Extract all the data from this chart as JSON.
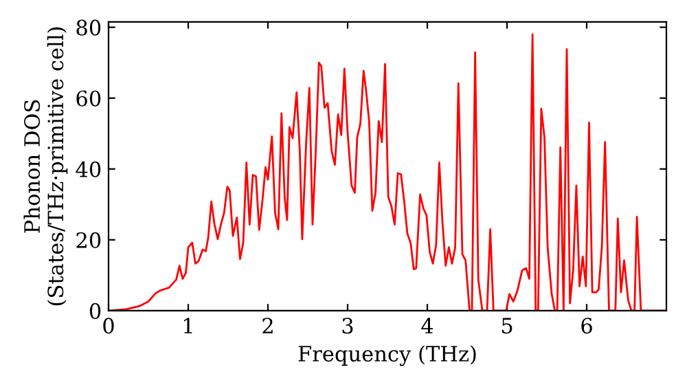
{
  "chart_data": {
    "type": "line",
    "xlabel": "Frequency (THz)",
    "ylabel": "Phonon DOS\n(States/THz·primitive cell)",
    "xlim": [
      0,
      7
    ],
    "ylim": [
      0,
      81.5
    ],
    "xticks": [
      0,
      1,
      2,
      3,
      4,
      5,
      6
    ],
    "yticks": [
      0,
      20,
      40,
      60,
      80
    ],
    "grid": false,
    "marker": "none",
    "line_style": "solid",
    "series": [
      {
        "color": "#ff0000",
        "x": [
          0,
          0.22,
          0.39,
          0.5,
          0.59,
          0.65,
          0.76,
          0.85,
          0.89,
          0.93,
          0.97,
          1.0,
          1.05,
          1.09,
          1.13,
          1.18,
          1.22,
          1.25,
          1.29,
          1.33,
          1.37,
          1.41,
          1.45,
          1.49,
          1.52,
          1.56,
          1.61,
          1.65,
          1.69,
          1.73,
          1.77,
          1.81,
          1.85,
          1.89,
          1.93,
          1.97,
          2.0,
          2.05,
          2.09,
          2.13,
          2.17,
          2.21,
          2.24,
          2.27,
          2.31,
          2.36,
          2.4,
          2.43,
          2.48,
          2.52,
          2.56,
          2.6,
          2.64,
          2.67,
          2.71,
          2.75,
          2.8,
          2.84,
          2.88,
          2.92,
          2.96,
          3.0,
          3.05,
          3.09,
          3.12,
          3.16,
          3.2,
          3.23,
          3.27,
          3.31,
          3.35,
          3.39,
          3.43,
          3.47,
          3.51,
          3.55,
          3.59,
          3.63,
          3.67,
          3.71,
          3.75,
          3.79,
          3.83,
          3.86,
          3.91,
          3.95,
          3.99,
          4.03,
          4.07,
          4.11,
          4.15,
          4.19,
          4.23,
          4.27,
          4.31,
          4.35,
          4.39,
          4.44,
          4.48,
          4.53,
          4.56,
          4.6,
          4.64,
          4.69,
          4.75,
          4.79,
          4.83,
          4.99,
          5.03,
          5.08,
          5.13,
          5.19,
          5.24,
          5.28,
          5.32,
          5.36,
          5.39,
          5.43,
          5.47,
          5.51,
          5.56,
          5.6,
          5.63,
          5.67,
          5.71,
          5.75,
          5.79,
          5.83,
          5.87,
          5.91,
          5.95,
          5.99,
          6.03,
          6.07,
          6.12,
          6.15,
          6.19,
          6.23,
          6.28,
          6.36,
          6.39,
          6.43,
          6.47,
          6.52,
          6.56,
          6.6,
          6.63,
          6.68,
          6.97
        ],
        "values": [
          0,
          0.4,
          1.3,
          2.6,
          4.9,
          5.7,
          6.5,
          8.8,
          12.7,
          9,
          10.7,
          17.9,
          19.2,
          13.3,
          14,
          17.2,
          16.8,
          20.5,
          30.8,
          24.3,
          20.2,
          24.3,
          27.6,
          35,
          34,
          21.1,
          26.3,
          14.6,
          19.2,
          41.8,
          24.3,
          38.3,
          37.9,
          22.8,
          30.8,
          40.5,
          37,
          49.2,
          27.6,
          23,
          55.7,
          32.1,
          25.6,
          51.8,
          48.7,
          61.6,
          45,
          20.2,
          47.6,
          62.9,
          24.3,
          45,
          70,
          69,
          57.3,
          58.6,
          45,
          41.2,
          55.4,
          49.6,
          68.3,
          50.2,
          35.3,
          33.3,
          48.9,
          52.8,
          67.7,
          62.5,
          53.5,
          28.2,
          33.3,
          53.5,
          47.6,
          69.6,
          32.1,
          29.5,
          24.3,
          38.8,
          38.5,
          30.8,
          21.7,
          19.2,
          11.7,
          12,
          32.8,
          28.9,
          26.9,
          16.6,
          13.3,
          18.5,
          41.8,
          25,
          12.7,
          17.9,
          13.3,
          17.9,
          64.2,
          15.9,
          14.2,
          0,
          0,
          72.9,
          8.8,
          0,
          0,
          23,
          0,
          0,
          4.7,
          2.6,
          5.6,
          11.4,
          12,
          9,
          78,
          0,
          0,
          57,
          48.9,
          17.9,
          4.9,
          0,
          0,
          46.1,
          0,
          73.8,
          2.1,
          11.4,
          35.3,
          6.9,
          15.3,
          6.9,
          53.1,
          5.2,
          5.2,
          6,
          17.9,
          47.6,
          0,
          0,
          26,
          5.2,
          14.2,
          3,
          0,
          0,
          26.5,
          0,
          0
        ]
      }
    ]
  }
}
